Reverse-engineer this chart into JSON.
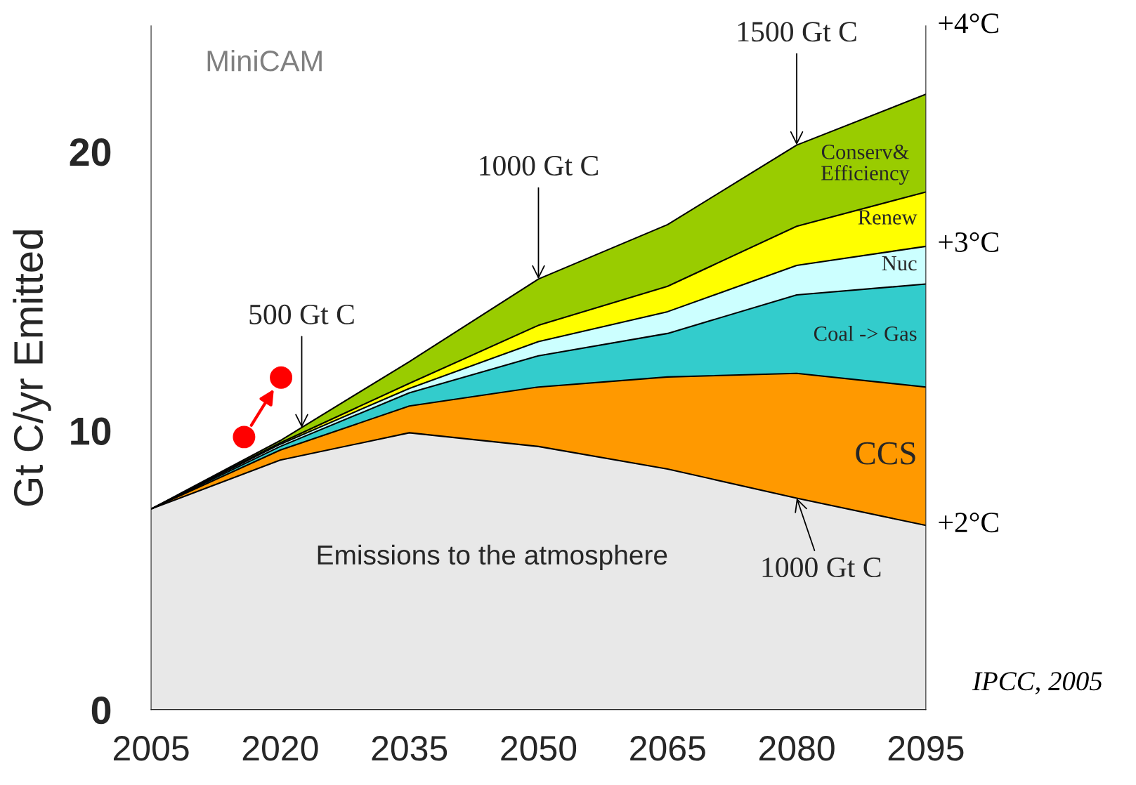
{
  "chart_data": {
    "type": "area",
    "stacked": true,
    "ylabel": "Gt C/yr Emitted",
    "x": [
      2005,
      2020,
      2035,
      2050,
      2065,
      2080,
      2095
    ],
    "xlim": [
      2005,
      2095
    ],
    "xticks": [
      2005,
      2020,
      2035,
      2050,
      2065,
      2080,
      2095
    ],
    "ylim": [
      0,
      24.5
    ],
    "yticks": [
      0,
      10,
      20
    ],
    "grid": false,
    "legend": false,
    "series": [
      {
        "name": "Emissions to the atmosphere",
        "color": "#e8e8e8",
        "values": [
          7.19,
          8.94,
          9.92,
          9.43,
          8.62,
          7.58,
          6.6
        ]
      },
      {
        "name": "CCS",
        "color": "#ff9900",
        "values": [
          0,
          0.36,
          0.96,
          2.13,
          3.3,
          4.47,
          4.96
        ]
      },
      {
        "name": "Coal -> Gas",
        "color": "#33cccc",
        "values": [
          0,
          0.13,
          0.47,
          1.12,
          1.56,
          2.81,
          3.69
        ]
      },
      {
        "name": "Nuc",
        "color": "#ccffff",
        "values": [
          0,
          0.08,
          0.16,
          0.51,
          0.78,
          1.06,
          1.35
        ]
      },
      {
        "name": "Renew",
        "color": "#ffff00",
        "values": [
          0,
          0.05,
          0.18,
          0.58,
          0.91,
          1.4,
          1.95
        ]
      },
      {
        "name": "Conserv& Efficiency",
        "color": "#99cc00",
        "values": [
          0,
          0.08,
          0.78,
          1.66,
          2.21,
          2.91,
          3.5
        ]
      },
      {
        "type": "scatter",
        "color": "#ff0000",
        "marker": "circle",
        "x": [
          2015.8,
          2020.1
        ],
        "values": [
          9.77,
          11.9
        ]
      }
    ],
    "annotations": [
      {
        "text": "500 Gt C",
        "x": 2022.5,
        "y": 10.1
      },
      {
        "text": "1000 Gt C",
        "x": 2050,
        "y": 15.43
      },
      {
        "text": "1500 Gt C",
        "x": 2080,
        "y": 20.23
      },
      {
        "text": "1000 Gt C",
        "x": 2080,
        "y": 7.58
      },
      "MiniCAM",
      "IPCC, 2005",
      "+4°C",
      "+3°C",
      "+2°C"
    ]
  }
}
